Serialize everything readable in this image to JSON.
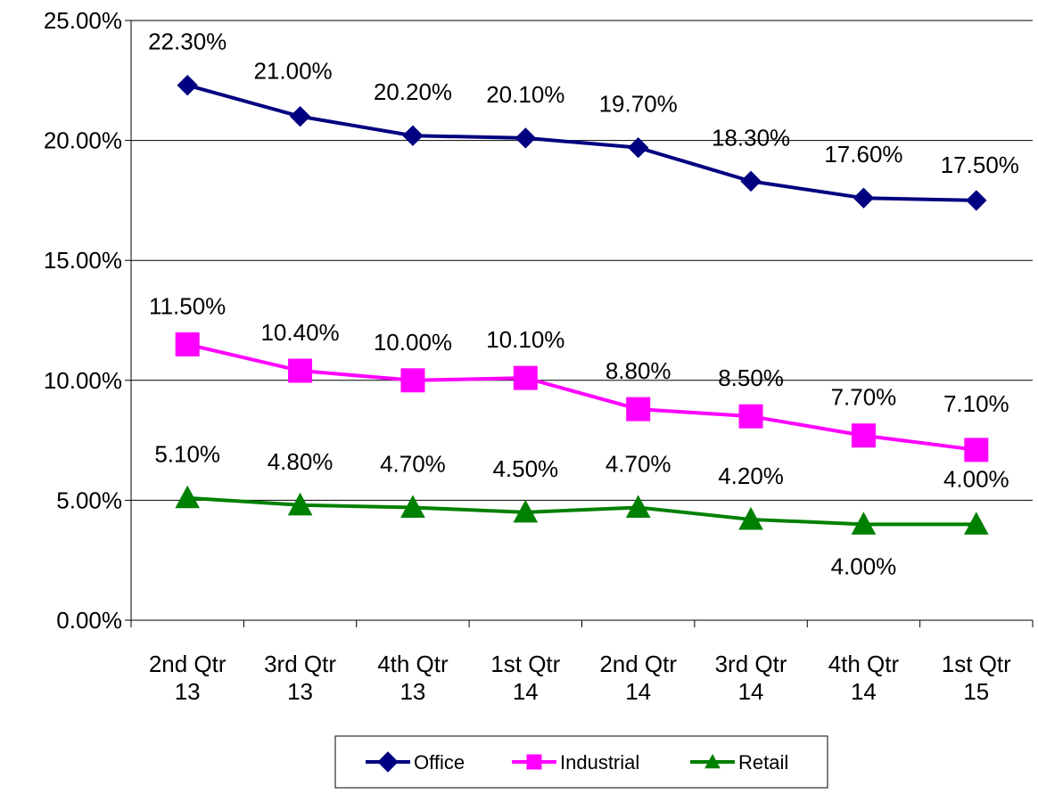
{
  "chart_data": {
    "type": "line",
    "title": "",
    "xlabel": "",
    "ylabel": "",
    "categories": [
      [
        "2nd Qtr",
        "13"
      ],
      [
        "3rd Qtr",
        "13"
      ],
      [
        "4th Qtr",
        "13"
      ],
      [
        "1st Qtr",
        "14"
      ],
      [
        "2nd Qtr",
        "14"
      ],
      [
        "3rd Qtr",
        "14"
      ],
      [
        "4th Qtr",
        "14"
      ],
      [
        "1st Qtr",
        "15"
      ]
    ],
    "ylim": [
      0,
      25
    ],
    "yticks": [
      0,
      5,
      10,
      15,
      20,
      25
    ],
    "ytick_labels": [
      "0.00%",
      "5.00%",
      "10.00%",
      "15.00%",
      "20.00%",
      "25.00%"
    ],
    "grid": "horizontal",
    "legend_position": "bottom",
    "series": [
      {
        "name": "Office",
        "color": "#000080",
        "marker": "diamond",
        "values": [
          22.3,
          21.0,
          20.2,
          20.1,
          19.7,
          18.3,
          17.6,
          17.5
        ],
        "labels": [
          "22.30%",
          "21.00%",
          "20.20%",
          "20.10%",
          "19.70%",
          "18.30%",
          "17.60%",
          "17.50%"
        ]
      },
      {
        "name": "Industrial",
        "color": "#FF00FF",
        "marker": "square",
        "values": [
          11.5,
          10.4,
          10.0,
          10.1,
          8.8,
          8.5,
          7.7,
          7.1
        ],
        "labels": [
          "11.50%",
          "10.40%",
          "10.00%",
          "10.10%",
          "8.80%",
          "8.50%",
          "7.70%",
          "7.10%"
        ]
      },
      {
        "name": "Retail",
        "color": "#008000",
        "marker": "triangle",
        "values": [
          5.1,
          4.8,
          4.7,
          4.5,
          4.7,
          4.2,
          4.0,
          4.0
        ],
        "labels": [
          "5.10%",
          "4.80%",
          "4.70%",
          "4.50%",
          "4.70%",
          "4.20%",
          "4.00%",
          "4.00%"
        ]
      }
    ]
  }
}
